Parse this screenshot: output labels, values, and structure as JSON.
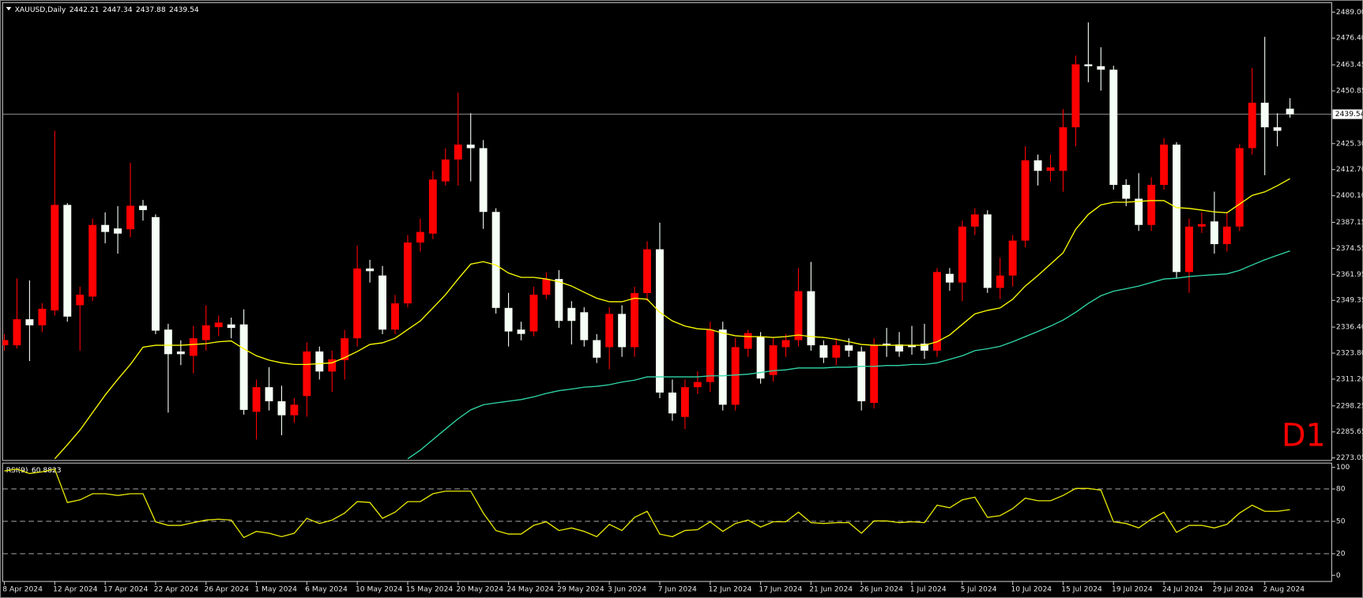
{
  "chart_data": [
    {
      "type": "candlestick",
      "title": "XAUUSD,Daily",
      "annotation": "D1",
      "annotation_color": "#ff0000",
      "up_color": "#ff0000",
      "down_color": "#f5fff5",
      "categories": [
        "8 Apr 2024",
        null,
        null,
        null,
        "12 Apr 2024",
        null,
        null,
        null,
        "17 Apr 2024",
        null,
        null,
        null,
        "22 Apr 2024",
        null,
        null,
        null,
        "26 Apr 2024",
        null,
        null,
        null,
        "1 May 2024",
        null,
        null,
        null,
        "6 May 2024",
        null,
        null,
        null,
        "10 May 2024",
        null,
        null,
        null,
        "15 May 2024",
        null,
        null,
        null,
        "20 May 2024",
        null,
        null,
        null,
        "24 May 2024",
        null,
        null,
        null,
        "29 May 2024",
        null,
        null,
        null,
        "3 Jun 2024",
        null,
        null,
        null,
        "7 Jun 2024",
        null,
        null,
        null,
        "12 Jun 2024",
        null,
        null,
        null,
        "17 Jun 2024",
        null,
        null,
        null,
        "21 Jun 2024",
        null,
        null,
        null,
        "26 Jun 2024",
        null,
        null,
        null,
        "1 Jul 2024",
        null,
        null,
        null,
        "5 Jul 2024",
        null,
        null,
        null,
        "10 Jul 2024",
        null,
        null,
        null,
        "15 Jul 2024",
        null,
        null,
        null,
        "19 Jul 2024",
        null,
        null,
        null,
        "24 Jul 2024",
        null,
        null,
        null,
        "29 Jul 2024",
        null,
        null,
        null,
        "2 Aug 2024",
        null,
        null
      ],
      "open": [
        2327.6,
        2327.6,
        2340.2,
        2337.3,
        2344.5,
        2395.6,
        2347.0,
        2351.2,
        2385.9,
        2384.2,
        2383.8,
        2395.2,
        2389.7,
        2335.2,
        2324.6,
        2322.5,
        2330.1,
        2336.4,
        2337.7,
        2337.7,
        2295.4,
        2307.3,
        2300.5,
        2293.7,
        2303.0,
        2324.6,
        2314.9,
        2320.4,
        2331.0,
        2364.8,
        2361.4,
        2335.2,
        2347.9,
        2377.4,
        2381.7,
        2407.0,
        2417.6,
        2424.8,
        2423.1,
        2392.2,
        2345.7,
        2335.2,
        2334.3,
        2352.1,
        2359.7,
        2345.7,
        2343.6,
        2330.1,
        2326.7,
        2342.8,
        2326.7,
        2352.9,
        2374.1,
        2304.7,
        2292.9,
        2307.3,
        2309.8,
        2335.2,
        2298.8,
        2325.9,
        2331.8,
        2313.2,
        2326.7,
        2330.1,
        2353.8,
        2327.6,
        2321.6,
        2327.6,
        2324.6,
        2299.7,
        2328.4,
        2328.0,
        2327.6,
        2328.4,
        2325.0,
        2362.2,
        2358.0,
        2385.1,
        2391.0,
        2355.4,
        2361.4,
        2378.3,
        2417.2,
        2412.1,
        2412.1,
        2433.2,
        2463.7,
        2462.8,
        2461.1,
        2405.3,
        2398.6,
        2385.9,
        2405.3,
        2424.8,
        2363.1,
        2385.1,
        2387.6,
        2376.6,
        2385.1,
        2423.1,
        2445.1,
        2433.2,
        2442.21
      ],
      "high": [
        2333,
        2360,
        2359,
        2348,
        2431.5,
        2396.5,
        2356,
        2389,
        2392,
        2395,
        2416,
        2398,
        2391,
        2338,
        2330,
        2337,
        2347,
        2342,
        2341,
        2345,
        2311,
        2317,
        2308,
        2302,
        2329,
        2327,
        2325,
        2335,
        2376,
        2369,
        2366,
        2352,
        2381,
        2389,
        2412,
        2423,
        2450,
        2440,
        2427,
        2394,
        2353,
        2339,
        2356,
        2363,
        2364,
        2349,
        2346,
        2333,
        2346,
        2347,
        2356,
        2378,
        2387,
        2311,
        2311,
        2315,
        2339,
        2339,
        2331,
        2335,
        2334,
        2331,
        2333,
        2365,
        2368,
        2330,
        2331,
        2331,
        2327,
        2331,
        2336,
        2334,
        2337,
        2338,
        2365,
        2365,
        2388,
        2394,
        2393,
        2370,
        2381,
        2424,
        2420,
        2420,
        2442,
        2468,
        2484,
        2472,
        2463,
        2408,
        2411,
        2409,
        2428,
        2426,
        2389,
        2392,
        2402,
        2392,
        2425,
        2462,
        2477,
        2440,
        2447.34
      ],
      "low": [
        2325,
        2326,
        2320,
        2334,
        2342,
        2339,
        2325,
        2349,
        2377,
        2372,
        2380,
        2388,
        2333,
        2295,
        2318,
        2314,
        2325,
        2332,
        2331,
        2294,
        2282,
        2296,
        2284,
        2290,
        2293,
        2311,
        2305,
        2311,
        2327,
        2358,
        2333,
        2333,
        2346,
        2373,
        2379,
        2405,
        2405,
        2407,
        2384,
        2343,
        2327,
        2330,
        2332,
        2350,
        2336,
        2328,
        2327,
        2319,
        2316,
        2322,
        2322,
        2349,
        2302,
        2291,
        2287,
        2304,
        2305,
        2296,
        2296,
        2322,
        2309,
        2310,
        2322,
        2327,
        2325,
        2319,
        2318,
        2322,
        2296,
        2297,
        2322,
        2322,
        2323,
        2321,
        2322,
        2354,
        2349,
        2381,
        2353,
        2350,
        2356,
        2375,
        2405,
        2407,
        2402,
        2424,
        2455,
        2451,
        2403,
        2395,
        2383,
        2383,
        2403,
        2360,
        2353,
        2382,
        2372,
        2373,
        2383,
        2420,
        2410,
        2424,
        2437.88
      ],
      "close": [
        2330.1,
        2340.2,
        2337.3,
        2345.3,
        2395.6,
        2341.5,
        2352.1,
        2385.9,
        2382.5,
        2381.7,
        2395.2,
        2393.1,
        2334.7,
        2323.3,
        2323.3,
        2331.0,
        2337.3,
        2338.6,
        2336.0,
        2296.3,
        2307.3,
        2300.5,
        2293.7,
        2298.8,
        2324.6,
        2314.9,
        2320.8,
        2331.0,
        2364.8,
        2363.5,
        2335.2,
        2347.9,
        2377.4,
        2382.5,
        2407.9,
        2417.6,
        2424.8,
        2423.1,
        2392.2,
        2345.7,
        2334.3,
        2333.1,
        2352.1,
        2359.7,
        2339.4,
        2339.4,
        2330.1,
        2321.6,
        2342.8,
        2326.7,
        2352.9,
        2374.1,
        2304.7,
        2294.6,
        2307.3,
        2309.8,
        2335.2,
        2298.8,
        2326.7,
        2333.5,
        2311.5,
        2327.6,
        2330.1,
        2353.8,
        2327.6,
        2321.6,
        2327.6,
        2325.0,
        2300.5,
        2327.6,
        2327.6,
        2324.6,
        2326.7,
        2325.0,
        2363.1,
        2358.0,
        2385.1,
        2391.0,
        2355.4,
        2361.4,
        2378.3,
        2417.2,
        2412.1,
        2413.8,
        2433.2,
        2463.7,
        2462.8,
        2461.1,
        2405.3,
        2398.6,
        2385.9,
        2405.3,
        2424.8,
        2363.1,
        2385.1,
        2386.3,
        2376.6,
        2385.1,
        2423.1,
        2445.1,
        2433.2,
        2431.5,
        2439.54
      ],
      "series": [
        {
          "color": "#ffff00",
          "values": [
            null,
            null,
            null,
            null,
            2272.6,
            2279.4,
            2286.5,
            2295.0,
            2303.5,
            2311.1,
            2318.3,
            2326.7,
            2327.6,
            2327.6,
            2327.6,
            2328.0,
            2328.4,
            2329.3,
            2329.7,
            2325.9,
            2322.5,
            2320.4,
            2319.1,
            2318.3,
            2318.3,
            2318.7,
            2319.1,
            2321.6,
            2324.6,
            2328.0,
            2328.8,
            2331.0,
            2335.2,
            2339.4,
            2345.7,
            2352.1,
            2359.7,
            2366.9,
            2368.1,
            2366.5,
            2362.6,
            2360.5,
            2360.5,
            2359.7,
            2358.4,
            2356.3,
            2353.3,
            2350.4,
            2348.7,
            2348.7,
            2350.4,
            2349.9,
            2343.6,
            2339.4,
            2336.9,
            2335.6,
            2335.2,
            2333.5,
            2332.2,
            2331.8,
            2331.8,
            2331.4,
            2331.8,
            2332.6,
            2331.8,
            2331.4,
            2330.5,
            2329.3,
            2328.0,
            2327.6,
            2327.6,
            2327.6,
            2327.6,
            2327.6,
            2329.3,
            2332.6,
            2337.7,
            2342.8,
            2344.5,
            2345.7,
            2349.9,
            2356.3,
            2361.4,
            2366.9,
            2372.4,
            2383.8,
            2391.0,
            2395.6,
            2396.9,
            2396.9,
            2397.3,
            2397.7,
            2397.7,
            2394.3,
            2393.9,
            2393.1,
            2392.2,
            2391.8,
            2396.0,
            2400.2,
            2401.9,
            2404.9,
            2408.3
          ]
        },
        {
          "color": "#2fd8a8",
          "values": [
            null,
            null,
            null,
            null,
            null,
            null,
            null,
            null,
            null,
            null,
            null,
            null,
            null,
            null,
            null,
            null,
            null,
            null,
            null,
            null,
            null,
            null,
            null,
            null,
            null,
            null,
            null,
            null,
            null,
            null,
            null,
            null,
            2272.6,
            2276.8,
            2281.9,
            2287.0,
            2292.0,
            2296.3,
            2298.8,
            2299.7,
            2300.5,
            2301.3,
            2302.6,
            2304.3,
            2305.6,
            2306.4,
            2307.3,
            2307.7,
            2308.5,
            2309.8,
            2310.7,
            2312.3,
            2312.3,
            2312.3,
            2312.3,
            2312.3,
            2312.8,
            2312.8,
            2313.2,
            2313.6,
            2314.4,
            2315.3,
            2315.7,
            2316.6,
            2316.6,
            2316.6,
            2317.0,
            2317.0,
            2317.4,
            2317.4,
            2317.8,
            2317.8,
            2318.3,
            2318.3,
            2319.1,
            2320.8,
            2322.5,
            2325.0,
            2325.9,
            2327.1,
            2329.3,
            2331.8,
            2334.3,
            2336.9,
            2339.8,
            2343.6,
            2347.9,
            2351.6,
            2353.8,
            2355.0,
            2356.3,
            2358.0,
            2359.7,
            2360.1,
            2360.9,
            2361.4,
            2361.8,
            2362.2,
            2363.9,
            2366.5,
            2369.0,
            2371.2,
            2373.3
          ]
        }
      ],
      "ylim": [
        2271.8,
        2493.6
      ],
      "yticks": [
        {
          "value": 2489,
          "label": "2489.00"
        },
        {
          "value": 2476.4,
          "label": "2476.40"
        },
        {
          "value": 2463.45,
          "label": "2463.45"
        },
        {
          "value": 2450.85,
          "label": "2450.85"
        },
        {
          "value": 2425.3,
          "label": "2425.30"
        },
        {
          "value": 2412.7,
          "label": "2412.70"
        },
        {
          "value": 2400.1,
          "label": "2400.10"
        },
        {
          "value": 2387.15,
          "label": "2387.15"
        },
        {
          "value": 2374.55,
          "label": "2374.55"
        },
        {
          "value": 2361.95,
          "label": "2361.95"
        },
        {
          "value": 2349.35,
          "label": "2349.35"
        },
        {
          "value": 2336.4,
          "label": "2336.40"
        },
        {
          "value": 2323.8,
          "label": "2323.80"
        },
        {
          "value": 2311.2,
          "label": "2311.20"
        },
        {
          "value": 2298.25,
          "label": "2298.25"
        },
        {
          "value": 2285.65,
          "label": "2285.65"
        },
        {
          "value": 2273.05,
          "label": "2273.05"
        }
      ],
      "grid": false
    },
    {
      "type": "line",
      "title": "RSI(9)",
      "series": [
        {
          "color": "#e8e800",
          "values": [
            96.7,
            98.4,
            94.3,
            95.9,
            98.4,
            67.5,
            69.9,
            75.6,
            75.6,
            74.0,
            75.6,
            75.6,
            49.6,
            46.3,
            46.3,
            48.8,
            51.2,
            52.0,
            51.2,
            35.0,
            40.7,
            39.0,
            35.8,
            39.0,
            52.8,
            48.0,
            51.2,
            57.7,
            68.3,
            67.5,
            52.8,
            58.5,
            68.3,
            68.3,
            75.6,
            78.0,
            78.0,
            78.0,
            57.7,
            41.5,
            38.2,
            38.2,
            46.3,
            49.6,
            41.5,
            43.9,
            40.7,
            35.8,
            47.2,
            41.5,
            53.7,
            59.3,
            38.2,
            35.8,
            41.5,
            42.3,
            49.6,
            40.7,
            48.0,
            51.2,
            44.7,
            49.6,
            49.6,
            58.5,
            48.8,
            48.0,
            48.8,
            48.8,
            39.0,
            50.4,
            50.4,
            48.8,
            49.6,
            48.8,
            65.0,
            62.6,
            69.9,
            72.4,
            53.7,
            55.3,
            61.8,
            71.5,
            69.1,
            69.1,
            74.0,
            80.5,
            80.5,
            78.9,
            49.6,
            48.0,
            43.9,
            52.0,
            58.5,
            39.8,
            46.3,
            46.3,
            43.9,
            47.2,
            57.7,
            65.0,
            59.3,
            59.3,
            60.8823
          ]
        }
      ],
      "ylim": [
        -5.7,
        104
      ],
      "yticks": [
        100,
        80,
        50,
        20,
        0
      ],
      "levels": [
        80,
        50,
        20
      ]
    }
  ]
}
